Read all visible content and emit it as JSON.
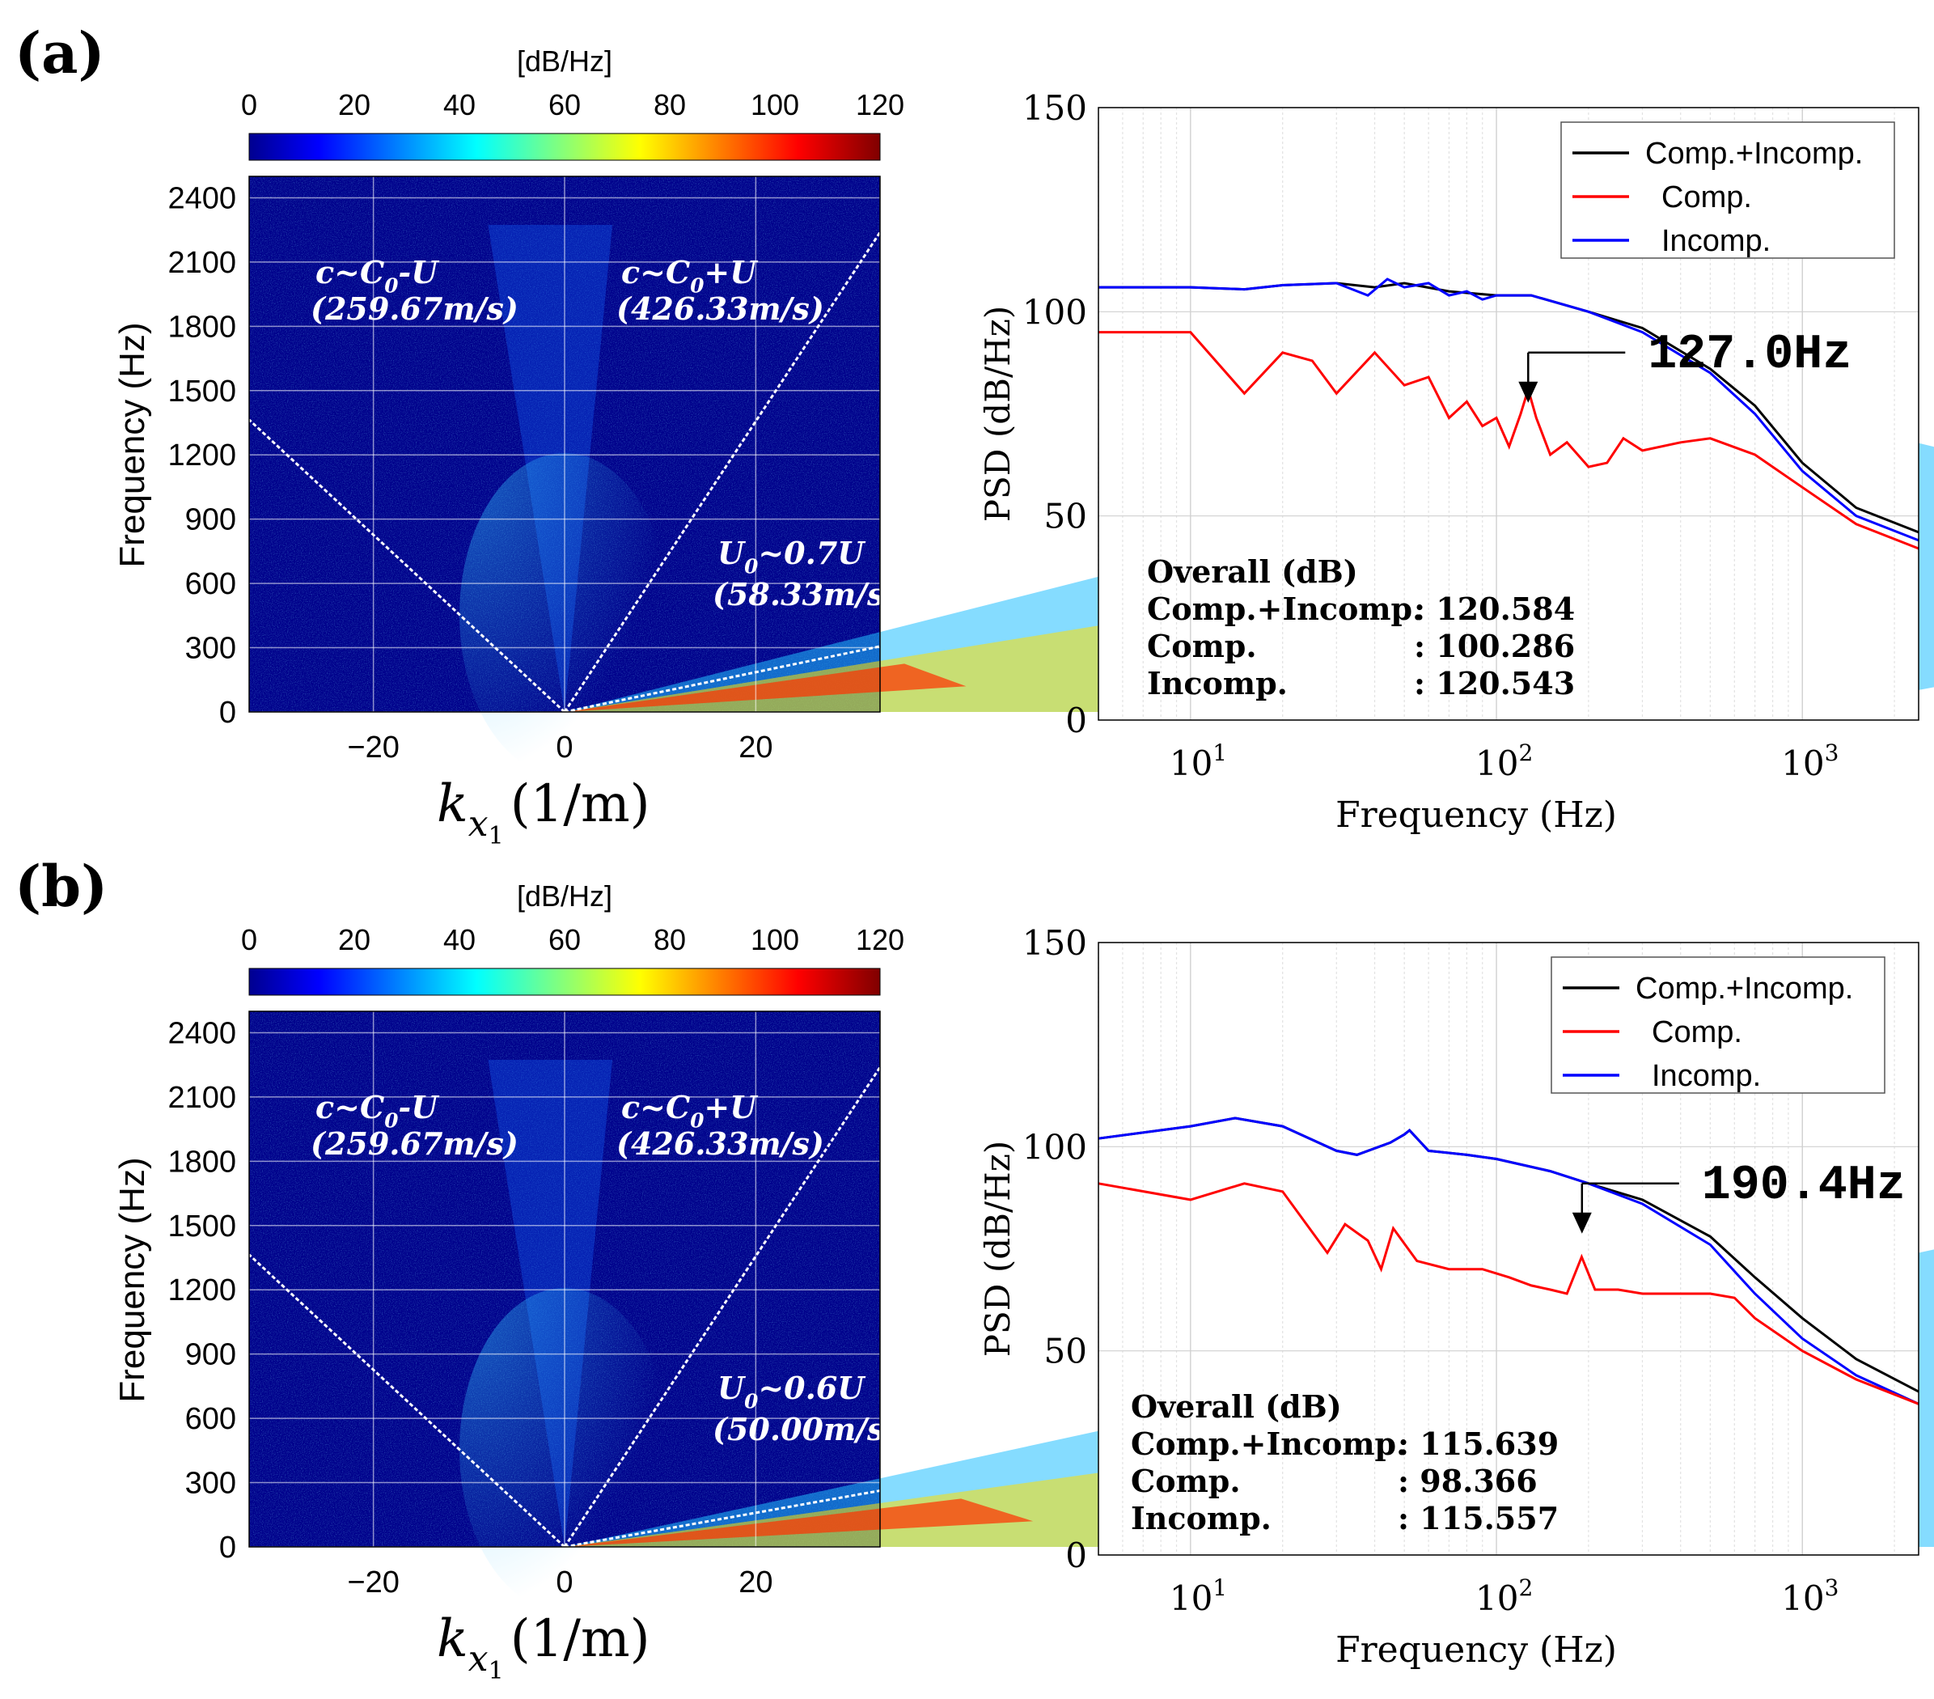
{
  "panels": [
    {
      "label": "(a)",
      "heatmap": {
        "type": "heatmap",
        "colorbar": {
          "label": "[dB/Hz]",
          "ticks": [
            0,
            20,
            40,
            60,
            80,
            100,
            120
          ],
          "range": [
            0,
            120
          ],
          "colormap": "jet"
        },
        "xlabel_main": "k",
        "xlabel_sub": "x",
        "xlabel_sub2": "1",
        "xlabel_unit": "(1/m)",
        "ylabel": "Frequency (Hz)",
        "xlim": [
          -33,
          33
        ],
        "ylim": [
          0,
          2500
        ],
        "xticks": [
          -20,
          0,
          20
        ],
        "xtick_labels": [
          "−20",
          "0",
          "20"
        ],
        "yticks": [
          0,
          300,
          600,
          900,
          1200,
          1500,
          1800,
          2100,
          2400
        ],
        "grid": true,
        "lines": [
          {
            "label_main": "c~C",
            "label_sub": "0",
            "label_rest": "-U",
            "speed_label": "(259.67m/s)",
            "speed": -259.67
          },
          {
            "label_main": "c~C",
            "label_sub": "0",
            "label_rest": "+U",
            "speed_label": "(426.33m/s)",
            "speed": 426.33
          },
          {
            "label_main": "U",
            "label_sub": "0",
            "label_rest": "~0.7U",
            "speed_label": "(58.33m/s)",
            "speed": 58.33
          }
        ]
      },
      "psd": {
        "type": "line",
        "xlabel": "Frequency (Hz)",
        "ylabel": "PSD (dB/Hz)",
        "xscale": "log",
        "xlim": [
          5,
          2400
        ],
        "ylim": [
          0,
          150
        ],
        "yticks": [
          0,
          50,
          100,
          150
        ],
        "xticks": [
          10,
          100,
          1000
        ],
        "xtick_base": "10",
        "xtick_exp": [
          "1",
          "2",
          "3"
        ],
        "grid": true,
        "legend_position": "top-right",
        "legend": [
          "Comp.+Incomp.",
          "Comp.",
          "Incomp."
        ],
        "colors": {
          "total": "#000000",
          "comp": "#ff0000",
          "incomp": "#0000ff"
        },
        "annotation": {
          "label": "127.0Hz",
          "freq": 127.0,
          "level": 90
        },
        "overall": {
          "title": "Overall (dB)",
          "rows": [
            {
              "name": "Comp.+Incomp.",
              "value": ": 120.584"
            },
            {
              "name": "Comp.",
              "value": ": 100.286"
            },
            {
              "name": "Incomp.",
              "value": ": 120.543"
            }
          ]
        },
        "series": [
          {
            "name": "Comp.+Incomp.",
            "x": [
              5,
              10,
              15,
              20,
              30,
              40,
              50,
              70,
              100,
              130,
              200,
              300,
              500,
              700,
              1000,
              1500,
              2400
            ],
            "y": [
              106,
              106,
              105.5,
              106.5,
              107,
              106,
              107,
              105,
              104,
              104,
              100,
              96,
              86,
              77,
              63,
              52,
              46
            ]
          },
          {
            "name": "Comp.",
            "x": [
              5,
              10,
              15,
              20,
              25,
              30,
              40,
              50,
              60,
              70,
              80,
              90,
              100,
              110,
              120,
              127,
              135,
              150,
              170,
              200,
              230,
              260,
              300,
              400,
              500,
              700,
              1000,
              1500,
              2400
            ],
            "y": [
              95,
              95,
              80,
              90,
              88,
              80,
              90,
              82,
              84,
              74,
              78,
              72,
              74,
              67,
              75,
              81,
              74,
              65,
              68,
              62,
              63,
              69,
              66,
              68,
              69,
              65,
              57,
              48,
              42
            ]
          },
          {
            "name": "Incomp.",
            "x": [
              5,
              10,
              15,
              20,
              30,
              38,
              44,
              50,
              60,
              70,
              80,
              90,
              100,
              130,
              200,
              300,
              500,
              700,
              1000,
              1500,
              2400
            ],
            "y": [
              106,
              106,
              105.5,
              106.5,
              107,
              104,
              108,
              106,
              107,
              104,
              105,
              103,
              104,
              104,
              100,
              95,
              85,
              75,
              61,
              50,
              44
            ]
          }
        ]
      }
    },
    {
      "label": "(b)",
      "heatmap": {
        "type": "heatmap",
        "colorbar": {
          "label": "[dB/Hz]",
          "ticks": [
            0,
            20,
            40,
            60,
            80,
            100,
            120
          ],
          "range": [
            0,
            120
          ],
          "colormap": "jet"
        },
        "xlabel_main": "k",
        "xlabel_sub": "x",
        "xlabel_sub2": "1",
        "xlabel_unit": "(1/m)",
        "ylabel": "Frequency (Hz)",
        "xlim": [
          -33,
          33
        ],
        "ylim": [
          0,
          2500
        ],
        "xticks": [
          -20,
          0,
          20
        ],
        "xtick_labels": [
          "−20",
          "0",
          "20"
        ],
        "yticks": [
          0,
          300,
          600,
          900,
          1200,
          1500,
          1800,
          2100,
          2400
        ],
        "grid": true,
        "lines": [
          {
            "label_main": "c~C",
            "label_sub": "0",
            "label_rest": "-U",
            "speed_label": "(259.67m/s)",
            "speed": -259.67
          },
          {
            "label_main": "c~C",
            "label_sub": "0",
            "label_rest": "+U",
            "speed_label": "(426.33m/s)",
            "speed": 426.33
          },
          {
            "label_main": "U",
            "label_sub": "0",
            "label_rest": "~0.6U",
            "speed_label": "(50.00m/s)",
            "speed": 50.0
          }
        ]
      },
      "psd": {
        "type": "line",
        "xlabel": "Frequency (Hz)",
        "ylabel": "PSD (dB/Hz)",
        "xscale": "log",
        "xlim": [
          5,
          2400
        ],
        "ylim": [
          0,
          150
        ],
        "yticks": [
          0,
          50,
          100,
          150
        ],
        "xticks": [
          10,
          100,
          1000
        ],
        "xtick_base": "10",
        "xtick_exp": [
          "1",
          "2",
          "3"
        ],
        "grid": true,
        "legend_position": "top-right",
        "legend": [
          "Comp.+Incomp.",
          "Comp.",
          "Incomp."
        ],
        "colors": {
          "total": "#000000",
          "comp": "#ff0000",
          "incomp": "#0000ff"
        },
        "annotation": {
          "label": "190.4Hz",
          "freq": 190.4,
          "level": 91
        },
        "overall": {
          "title": "Overall (dB)",
          "rows": [
            {
              "name": "Comp.+Incomp.",
              "value": ": 115.639"
            },
            {
              "name": "Comp.",
              "value": ": 98.366"
            },
            {
              "name": "Incomp.",
              "value": ": 115.557"
            }
          ]
        },
        "series": [
          {
            "name": "Comp.+Incomp.",
            "x": [
              5,
              10,
              14,
              20,
              30,
              35,
              45,
              50,
              52,
              60,
              80,
              100,
              150,
              200,
              300,
              500,
              700,
              1000,
              1500,
              2400
            ],
            "y": [
              102,
              105,
              107,
              105,
              99,
              98,
              101,
              103,
              104,
              99,
              98,
              97,
              94,
              91,
              87,
              78,
              68,
              58,
              48,
              40
            ]
          },
          {
            "name": "Comp.",
            "x": [
              5,
              10,
              15,
              20,
              28,
              32,
              38,
              42,
              46,
              55,
              70,
              90,
              110,
              130,
              150,
              170,
              190,
              210,
              250,
              300,
              400,
              500,
              600,
              700,
              1000,
              1500,
              2400
            ],
            "y": [
              91,
              87,
              91,
              89,
              74,
              81,
              77,
              70,
              80,
              72,
              70,
              70,
              68,
              66,
              65,
              64,
              73,
              65,
              65,
              64,
              64,
              64,
              63,
              58,
              50,
              43,
              37
            ]
          },
          {
            "name": "Incomp.",
            "x": [
              5,
              10,
              14,
              20,
              30,
              35,
              45,
              50,
              52,
              60,
              80,
              100,
              150,
              200,
              300,
              500,
              700,
              1000,
              1500,
              2400
            ],
            "y": [
              102,
              105,
              107,
              105,
              99,
              98,
              101,
              103,
              104,
              99,
              98,
              97,
              94,
              91,
              86,
              76,
              64,
              53,
              44,
              37
            ]
          }
        ]
      }
    }
  ]
}
